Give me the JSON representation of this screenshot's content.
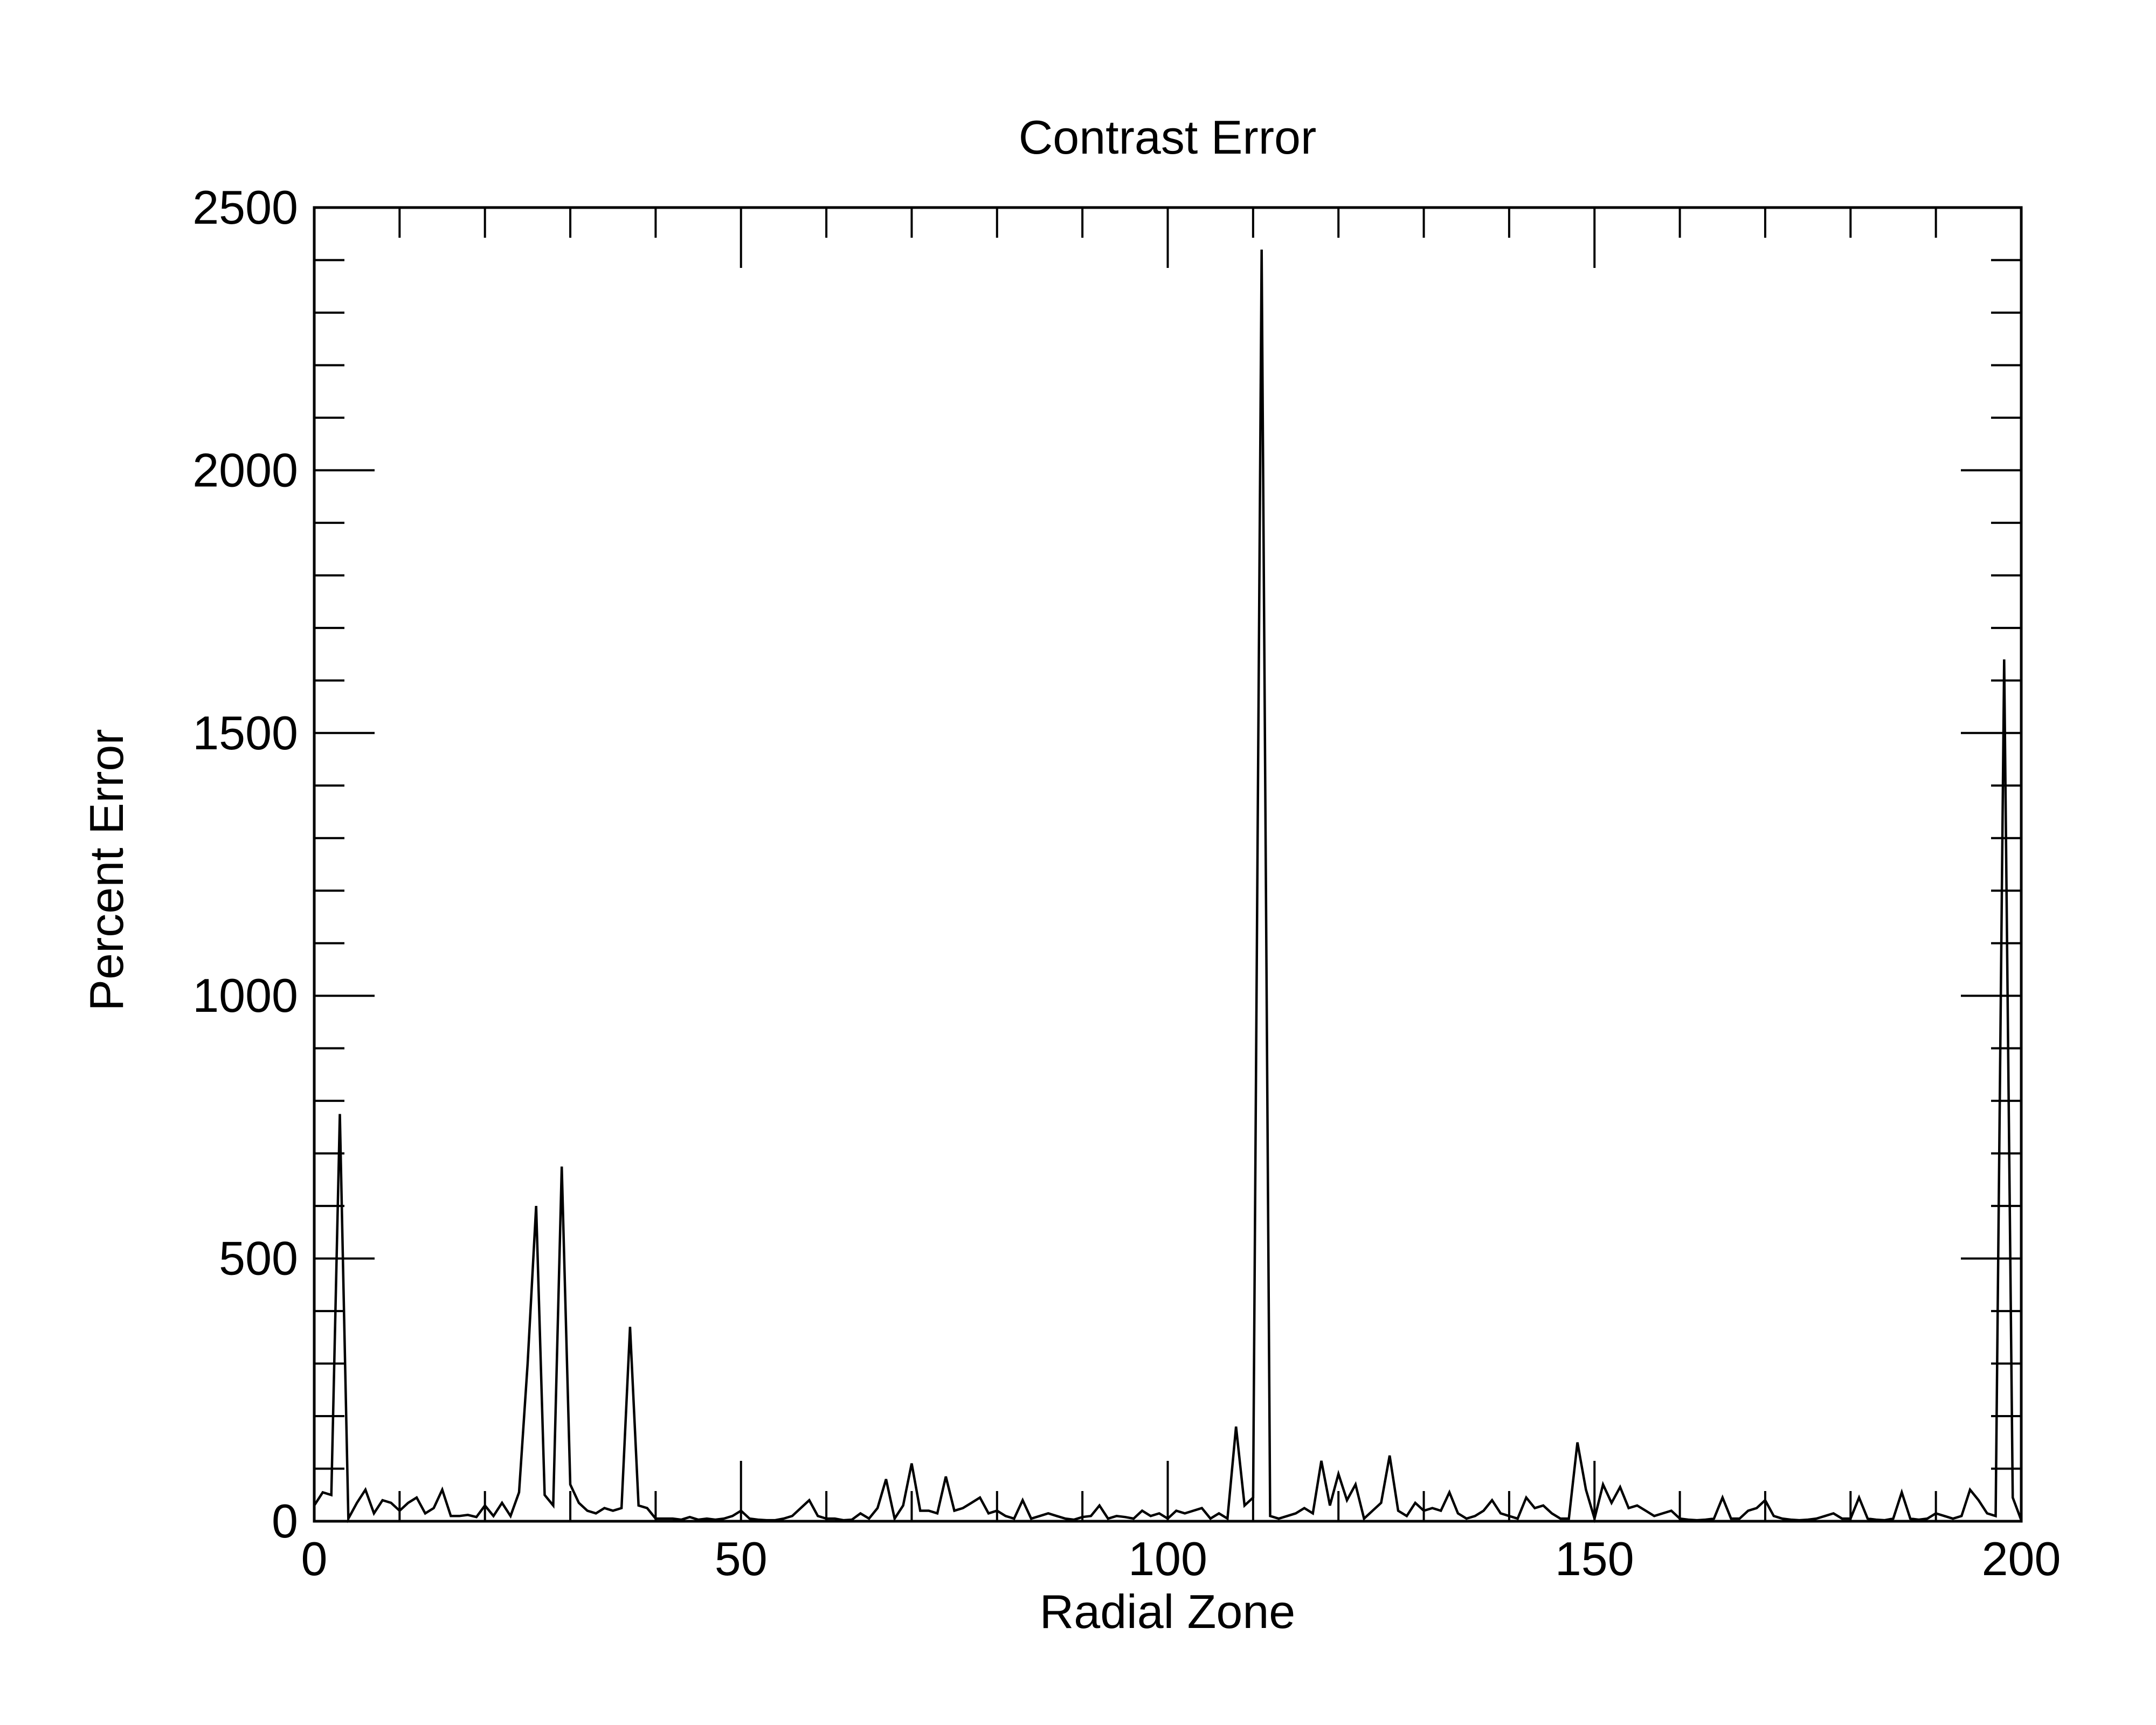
{
  "chart_data": {
    "type": "line",
    "title": "Contrast Error",
    "xlabel": "Radial Zone",
    "ylabel": "Percent Error",
    "xlim": [
      0,
      200
    ],
    "ylim": [
      0,
      2500
    ],
    "xticks": [
      0,
      50,
      100,
      150,
      200
    ],
    "yticks": [
      0,
      500,
      1000,
      1500,
      2000,
      2500
    ],
    "x_minor_step": 10,
    "y_minor_step": 100,
    "grid": false,
    "line_color": "#000000",
    "series": [
      {
        "points": [
          [
            0,
            30
          ],
          [
            1,
            55
          ],
          [
            2,
            50
          ],
          [
            3,
            775
          ],
          [
            4,
            5
          ],
          [
            5,
            35
          ],
          [
            6,
            60
          ],
          [
            7,
            15
          ],
          [
            8,
            40
          ],
          [
            9,
            35
          ],
          [
            10,
            20
          ],
          [
            11,
            35
          ],
          [
            12,
            45
          ],
          [
            13,
            15
          ],
          [
            14,
            25
          ],
          [
            15,
            60
          ],
          [
            16,
            10
          ],
          [
            17,
            10
          ],
          [
            18,
            12
          ],
          [
            19,
            8
          ],
          [
            20,
            30
          ],
          [
            21,
            10
          ],
          [
            22,
            35
          ],
          [
            23,
            10
          ],
          [
            24,
            55
          ],
          [
            25,
            300
          ],
          [
            26,
            600
          ],
          [
            27,
            50
          ],
          [
            28,
            30
          ],
          [
            29,
            675
          ],
          [
            30,
            70
          ],
          [
            31,
            35
          ],
          [
            32,
            20
          ],
          [
            33,
            15
          ],
          [
            34,
            25
          ],
          [
            35,
            20
          ],
          [
            36,
            25
          ],
          [
            37,
            370
          ],
          [
            38,
            30
          ],
          [
            39,
            25
          ],
          [
            40,
            5
          ],
          [
            41,
            5
          ],
          [
            42,
            5
          ],
          [
            43,
            3
          ],
          [
            44,
            8
          ],
          [
            45,
            3
          ],
          [
            46,
            5
          ],
          [
            47,
            3
          ],
          [
            48,
            5
          ],
          [
            49,
            10
          ],
          [
            50,
            20
          ],
          [
            51,
            5
          ],
          [
            52,
            3
          ],
          [
            53,
            2
          ],
          [
            54,
            2
          ],
          [
            55,
            5
          ],
          [
            56,
            10
          ],
          [
            57,
            25
          ],
          [
            58,
            40
          ],
          [
            59,
            10
          ],
          [
            60,
            5
          ],
          [
            61,
            5
          ],
          [
            62,
            2
          ],
          [
            63,
            3
          ],
          [
            64,
            15
          ],
          [
            65,
            5
          ],
          [
            66,
            25
          ],
          [
            67,
            80
          ],
          [
            68,
            5
          ],
          [
            69,
            30
          ],
          [
            70,
            110
          ],
          [
            71,
            20
          ],
          [
            72,
            20
          ],
          [
            73,
            15
          ],
          [
            74,
            85
          ],
          [
            75,
            20
          ],
          [
            76,
            25
          ],
          [
            77,
            35
          ],
          [
            78,
            45
          ],
          [
            79,
            15
          ],
          [
            80,
            20
          ],
          [
            81,
            10
          ],
          [
            82,
            5
          ],
          [
            83,
            40
          ],
          [
            84,
            5
          ],
          [
            85,
            10
          ],
          [
            86,
            15
          ],
          [
            87,
            10
          ],
          [
            88,
            5
          ],
          [
            89,
            3
          ],
          [
            90,
            8
          ],
          [
            91,
            10
          ],
          [
            92,
            30
          ],
          [
            93,
            5
          ],
          [
            94,
            10
          ],
          [
            95,
            8
          ],
          [
            96,
            5
          ],
          [
            97,
            20
          ],
          [
            98,
            10
          ],
          [
            99,
            15
          ],
          [
            100,
            5
          ],
          [
            101,
            20
          ],
          [
            102,
            15
          ],
          [
            103,
            20
          ],
          [
            104,
            25
          ],
          [
            105,
            5
          ],
          [
            106,
            15
          ],
          [
            107,
            5
          ],
          [
            108,
            180
          ],
          [
            109,
            30
          ],
          [
            110,
            45
          ],
          [
            111,
            2420
          ],
          [
            112,
            10
          ],
          [
            113,
            5
          ],
          [
            114,
            10
          ],
          [
            115,
            15
          ],
          [
            116,
            25
          ],
          [
            117,
            15
          ],
          [
            118,
            115
          ],
          [
            119,
            30
          ],
          [
            120,
            90
          ],
          [
            121,
            40
          ],
          [
            122,
            70
          ],
          [
            123,
            5
          ],
          [
            124,
            20
          ],
          [
            125,
            35
          ],
          [
            126,
            125
          ],
          [
            127,
            20
          ],
          [
            128,
            10
          ],
          [
            129,
            35
          ],
          [
            130,
            20
          ],
          [
            131,
            25
          ],
          [
            132,
            20
          ],
          [
            133,
            55
          ],
          [
            134,
            15
          ],
          [
            135,
            5
          ],
          [
            136,
            10
          ],
          [
            137,
            20
          ],
          [
            138,
            40
          ],
          [
            139,
            15
          ],
          [
            140,
            10
          ],
          [
            141,
            5
          ],
          [
            142,
            45
          ],
          [
            143,
            25
          ],
          [
            144,
            30
          ],
          [
            145,
            15
          ],
          [
            146,
            5
          ],
          [
            147,
            5
          ],
          [
            148,
            150
          ],
          [
            149,
            60
          ],
          [
            150,
            5
          ],
          [
            151,
            70
          ],
          [
            152,
            35
          ],
          [
            153,
            65
          ],
          [
            154,
            25
          ],
          [
            155,
            30
          ],
          [
            156,
            20
          ],
          [
            157,
            10
          ],
          [
            158,
            15
          ],
          [
            159,
            20
          ],
          [
            160,
            5
          ],
          [
            161,
            3
          ],
          [
            162,
            2
          ],
          [
            163,
            3
          ],
          [
            164,
            5
          ],
          [
            165,
            45
          ],
          [
            166,
            5
          ],
          [
            167,
            5
          ],
          [
            168,
            20
          ],
          [
            169,
            25
          ],
          [
            170,
            40
          ],
          [
            171,
            10
          ],
          [
            172,
            5
          ],
          [
            173,
            3
          ],
          [
            174,
            2
          ],
          [
            175,
            3
          ],
          [
            176,
            5
          ],
          [
            177,
            10
          ],
          [
            178,
            15
          ],
          [
            179,
            5
          ],
          [
            180,
            5
          ],
          [
            181,
            45
          ],
          [
            182,
            5
          ],
          [
            183,
            3
          ],
          [
            184,
            2
          ],
          [
            185,
            5
          ],
          [
            186,
            55
          ],
          [
            187,
            5
          ],
          [
            188,
            3
          ],
          [
            189,
            5
          ],
          [
            190,
            15
          ],
          [
            191,
            10
          ],
          [
            192,
            5
          ],
          [
            193,
            10
          ],
          [
            194,
            60
          ],
          [
            195,
            40
          ],
          [
            196,
            15
          ],
          [
            197,
            10
          ],
          [
            198,
            1640
          ],
          [
            199,
            45
          ],
          [
            200,
            2
          ]
        ]
      }
    ]
  }
}
